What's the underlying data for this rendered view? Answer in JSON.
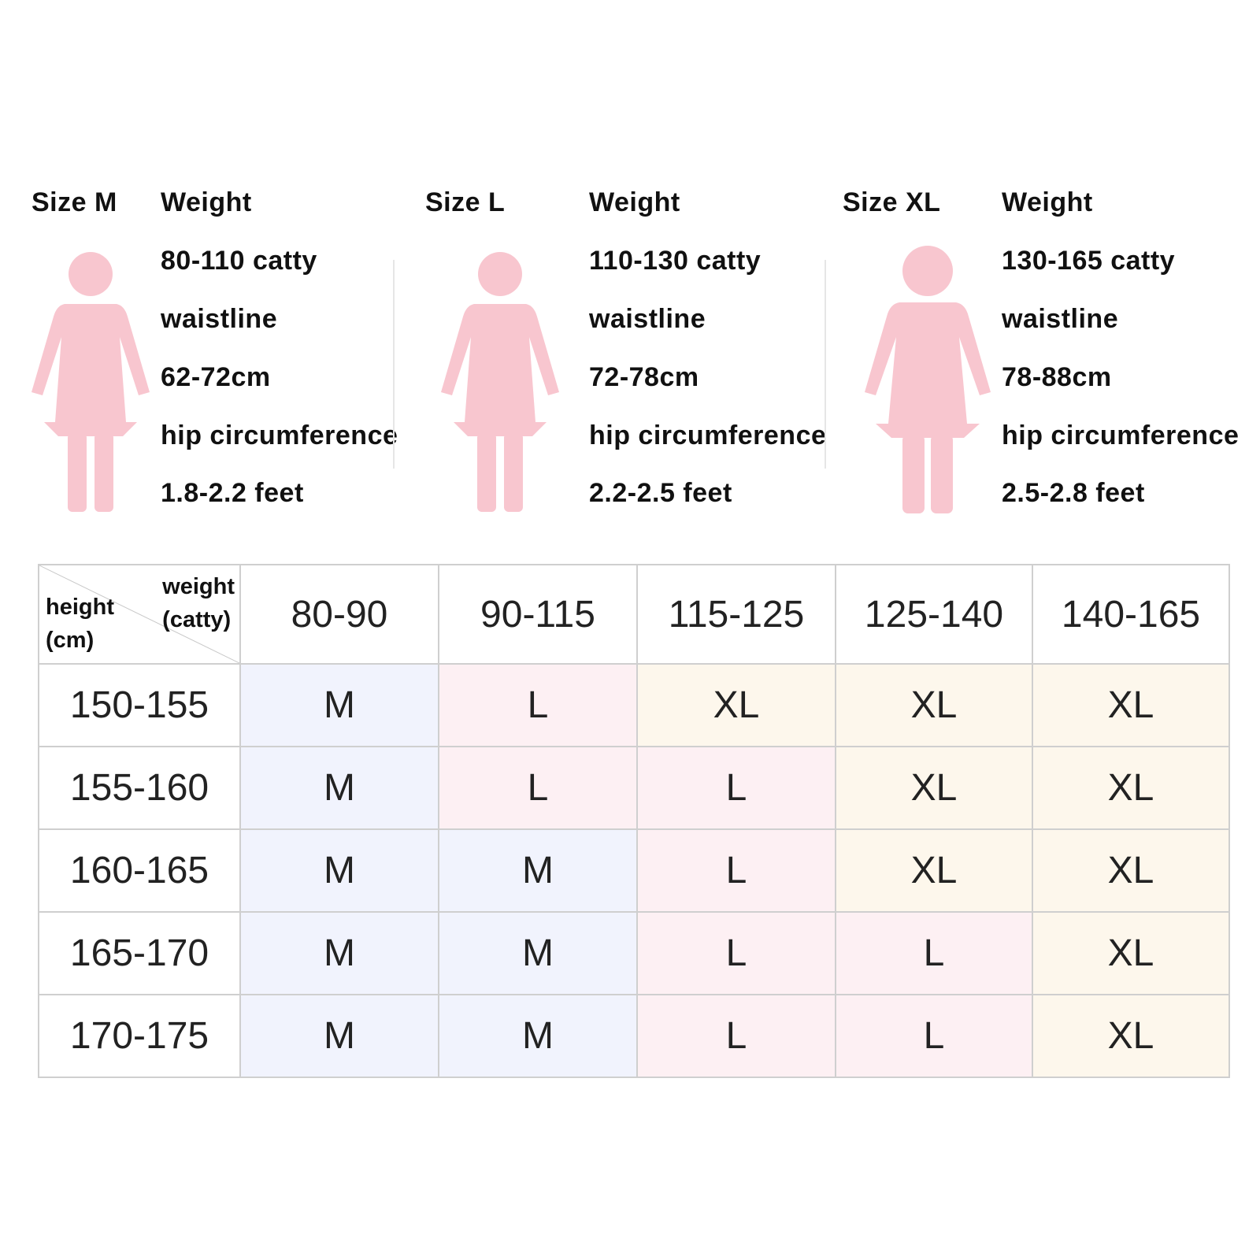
{
  "size_blocks": [
    {
      "size_label": "Size M",
      "weight_label": "Weight",
      "weight_value": "80-110 catty",
      "waist_label": "waistline",
      "waist_value": "62-72cm",
      "hip_label": "hip circumference",
      "hip_value": "1.8-2.2 feet",
      "figure_icon": "woman-figure-icon"
    },
    {
      "size_label": "Size L",
      "weight_label": "Weight",
      "weight_value": "110-130 catty",
      "waist_label": "waistline",
      "waist_value": "72-78cm",
      "hip_label": "hip circumference",
      "hip_value": "2.2-2.5 feet",
      "figure_icon": "woman-figure-icon"
    },
    {
      "size_label": "Size XL",
      "weight_label": "Weight",
      "weight_value": "130-165 catty",
      "waist_label": "waistline",
      "waist_value": "78-88cm",
      "hip_label": "hip circumference",
      "hip_value": "2.5-2.8 feet",
      "figure_icon": "woman-figure-icon"
    }
  ],
  "figure_color": "#f8c6cf",
  "table": {
    "corner_weight": [
      "weight",
      "(catty)"
    ],
    "corner_height": [
      "height",
      "(cm)"
    ],
    "weight_columns": [
      "80-90",
      "90-115",
      "115-125",
      "125-140",
      "140-165"
    ],
    "rows": [
      {
        "height": "150-155",
        "cells": [
          "M",
          "L",
          "XL",
          "XL",
          "XL"
        ]
      },
      {
        "height": "155-160",
        "cells": [
          "M",
          "L",
          "L",
          "XL",
          "XL"
        ]
      },
      {
        "height": "160-165",
        "cells": [
          "M",
          "M",
          "L",
          "XL",
          "XL"
        ]
      },
      {
        "height": "165-170",
        "cells": [
          "M",
          "M",
          "L",
          "L",
          "XL"
        ]
      },
      {
        "height": "170-175",
        "cells": [
          "M",
          "M",
          "L",
          "L",
          "XL"
        ]
      }
    ],
    "size_tints": {
      "M": "#f1f3fd",
      "L": "#fdf0f3",
      "XL": "#fdf7ec"
    },
    "border_color": "#cfcfcf"
  }
}
